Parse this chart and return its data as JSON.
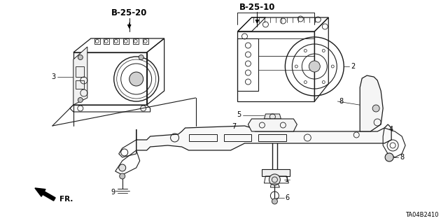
{
  "bg_color": "#ffffff",
  "figsize": [
    6.4,
    3.19
  ],
  "dpi": 100,
  "label_b25_20": "B-25-20",
  "label_b25_10": "B-25-10",
  "label_ta04b2410": "TA04B2410",
  "label_fr": "FR.",
  "part_numbers": [
    "1",
    "2",
    "3",
    "4",
    "5",
    "6",
    "7",
    "8",
    "9"
  ],
  "line_color": "#1a1a1a",
  "text_color": "#000000"
}
